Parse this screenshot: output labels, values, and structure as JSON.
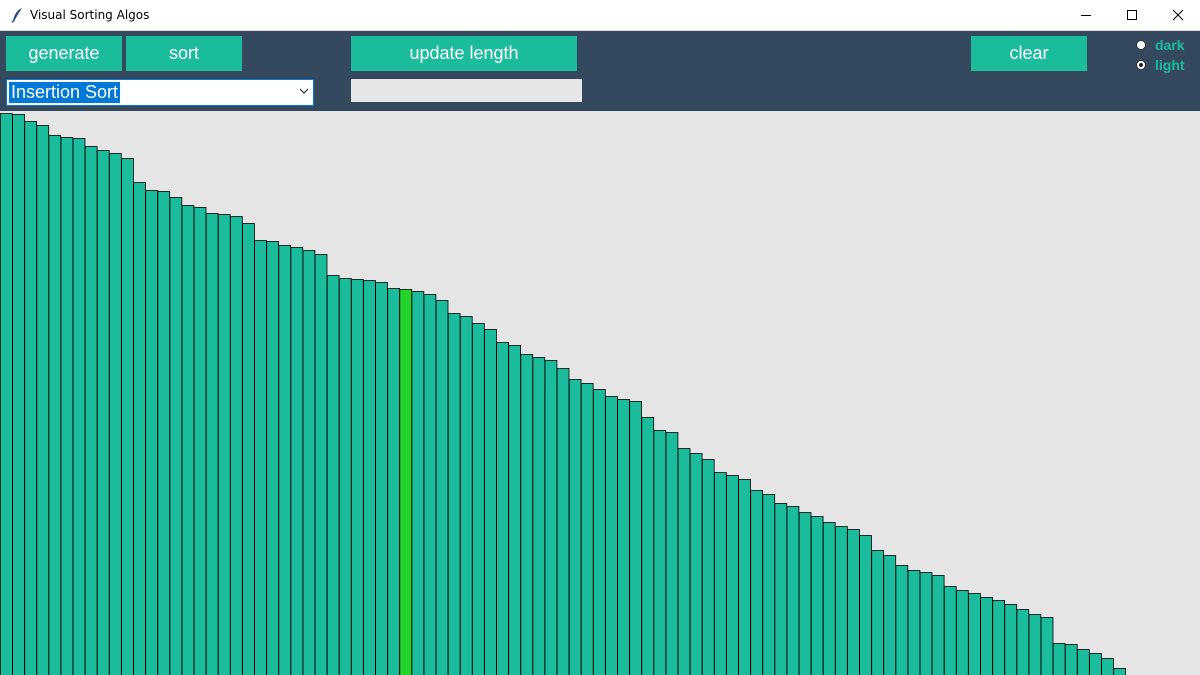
{
  "window": {
    "title": "Visual Sorting Algos"
  },
  "toolbar": {
    "generate_label": "generate",
    "sort_label": "sort",
    "update_length_label": "update length",
    "clear_label": "clear",
    "algorithm": "Insertion Sort",
    "length_value": ""
  },
  "theme": {
    "options": [
      "dark",
      "light"
    ],
    "selected": "light"
  },
  "colors": {
    "toolbar_bg": "#34495e",
    "accent": "#1abc9c",
    "canvas_bg": "#e5e5e5",
    "bar": "#1abc9c",
    "bar_highlight": "#21d42a",
    "bar_outline": "#000000"
  },
  "chart_data": {
    "type": "bar",
    "ylim": [
      0,
      564
    ],
    "highlight_index": 33,
    "values": [
      562,
      561,
      554,
      550,
      540,
      538,
      537,
      529,
      525,
      522,
      517,
      493,
      485,
      484,
      478,
      470,
      468,
      462,
      461,
      459,
      452,
      435,
      434,
      430,
      428,
      425,
      421,
      400,
      397,
      396,
      395,
      393,
      387,
      386,
      384,
      381,
      375,
      362,
      359,
      352,
      346,
      333,
      330,
      321,
      318,
      315,
      307,
      296,
      292,
      286,
      279,
      276,
      274,
      258,
      245,
      243,
      227,
      222,
      216,
      203,
      200,
      196,
      185,
      181,
      172,
      169,
      163,
      159,
      153,
      149,
      146,
      140,
      125,
      120,
      110,
      105,
      103,
      100,
      89,
      85,
      82,
      78,
      75,
      71,
      66,
      61,
      58,
      32,
      31,
      26,
      22,
      17,
      7
    ]
  }
}
